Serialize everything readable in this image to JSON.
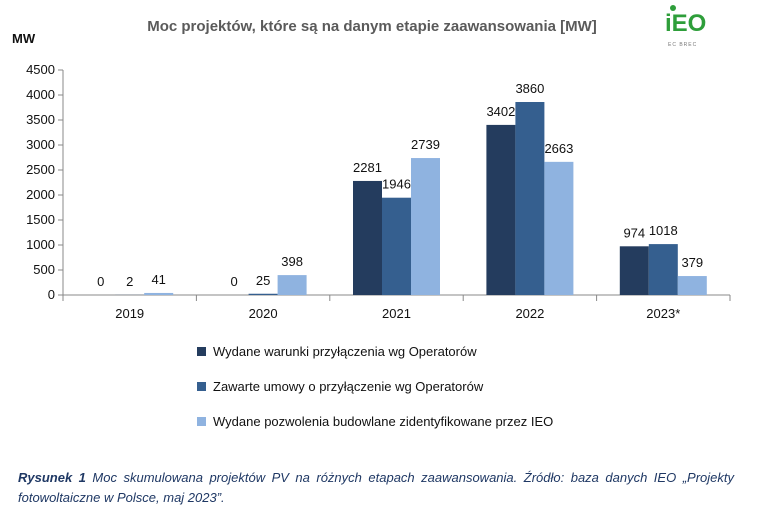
{
  "chart_data": {
    "type": "bar",
    "title": "Moc projektów, które są na danym etapie zaawansowania [MW]",
    "ylabel": "MW",
    "xlabel": "",
    "categories": [
      "2019",
      "2020",
      "2021",
      "2022",
      "2023*"
    ],
    "ylim": [
      0,
      4500
    ],
    "yticks": [
      0,
      500,
      1000,
      1500,
      2000,
      2500,
      3000,
      3500,
      4000,
      4500
    ],
    "grid": false,
    "legend_position": "bottom",
    "series": [
      {
        "name": "Wydane warunki przyłączenia wg Operatorów",
        "color": "#243c5e",
        "values": [
          0,
          0,
          2281,
          3402,
          974
        ]
      },
      {
        "name": "Zawarte umowy o przyłączenie wg Operatorów",
        "color": "#355f8f",
        "values": [
          2,
          25,
          1946,
          3860,
          1018
        ]
      },
      {
        "name": "Wydane pozwolenia budowlane zidentyfikowane przez IEO",
        "color": "#8fb3e0",
        "values": [
          41,
          398,
          2739,
          2663,
          379
        ]
      }
    ]
  },
  "logo": {
    "text": "iEO",
    "subtext": "EC BREC"
  },
  "caption": {
    "label": "Rysunek 1",
    "text": " Moc skumulowana projektów PV na różnych etapach zaawansowania. Źródło: baza danych IEO „Projekty fotowoltaiczne w Polsce, maj 2023”."
  }
}
